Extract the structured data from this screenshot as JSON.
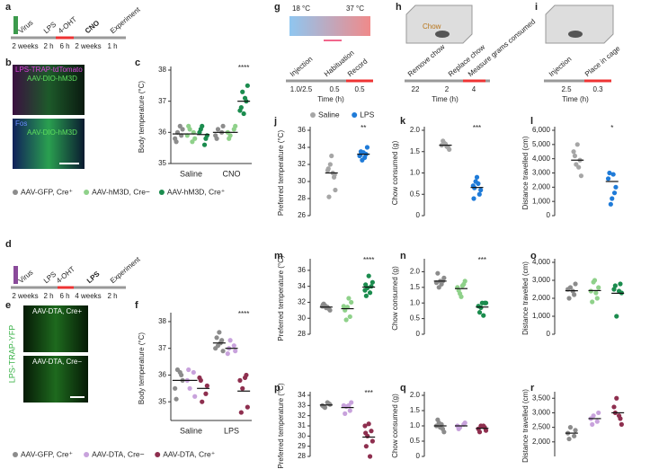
{
  "panel_labels": [
    "a",
    "b",
    "c",
    "d",
    "e",
    "f",
    "g",
    "h",
    "i",
    "j",
    "k",
    "l",
    "m",
    "n",
    "o",
    "p",
    "q",
    "r"
  ],
  "timeline_a": {
    "events": [
      "Virus",
      "LPS",
      "4-OHT",
      "CNO",
      "Experiment"
    ],
    "durations": [
      "2 weeks",
      "2 h",
      "6 h",
      "2 weeks",
      "1 h"
    ]
  },
  "timeline_d": {
    "events": [
      "Virus",
      "LPS",
      "4-OHT",
      "LPS",
      "Experiment"
    ],
    "durations": [
      "2 weeks",
      "2 h",
      "6 h",
      "4 weeks",
      "2 h"
    ]
  },
  "image_b": [
    "LPS-TRAP-tdTomato",
    "AAV-DIO-hM3D",
    "Fos",
    "AAV-DIO-hM3D"
  ],
  "image_e": [
    "AAV-DTA, Cre+",
    "AAV-DTA, Cre−",
    "LPS-TRAP-YFP"
  ],
  "diagram_g": {
    "temps": [
      "18 °C",
      "37 °C"
    ],
    "events": [
      "Injection",
      "Habituation",
      "Record"
    ],
    "durations": [
      "1.0/2.5",
      "0.5",
      "0.5"
    ],
    "axis": "Time (h)"
  },
  "diagram_h": {
    "box": "Chow",
    "events": [
      "Remove chow",
      "Replace chow",
      "Measure grams consumed"
    ],
    "durations": [
      "22",
      "2",
      "4"
    ],
    "axis": "Time (h)"
  },
  "diagram_i": {
    "events": [
      "Injection",
      "Place in cage"
    ],
    "durations": [
      "2.5",
      "0.3"
    ],
    "axis": "Time (h)"
  },
  "chart_data": [
    {
      "type": "strip",
      "ylabel": "Body temperature (°C)",
      "ylim": [
        35,
        38
      ],
      "yticks": [
        35,
        36,
        37,
        38
      ],
      "categories": [
        "Saline",
        "CNO"
      ],
      "annotation": "****",
      "series": [
        {
          "name": "AAV-GFP, Cre⁺",
          "color": "#8c8c8c",
          "values": [
            [
              35.8,
              35.9,
              36.0,
              36.1,
              35.7,
              36.2
            ],
            [
              35.9,
              36.0,
              36.1,
              36.2,
              35.8
            ]
          ],
          "means": [
            35.95,
            36.0
          ]
        },
        {
          "name": "AAV-hM3D, Cre−",
          "color": "#8fd18a",
          "values": [
            [
              35.9,
              36.0,
              36.1,
              35.8,
              36.2,
              35.7
            ],
            [
              36.0,
              36.1,
              35.9,
              36.2,
              35.8
            ]
          ],
          "means": [
            35.95,
            36.0
          ]
        },
        {
          "name": "AAV-hM3D, Cre⁺",
          "color": "#1b8c4e",
          "values": [
            [
              36.0,
              35.8,
              36.2,
              35.9,
              36.1,
              35.6
            ],
            [
              36.7,
              37.0,
              37.3,
              37.5,
              36.8,
              37.1,
              36.6
            ]
          ],
          "means": [
            35.93,
            37.0
          ]
        }
      ]
    },
    {
      "type": "strip",
      "ylabel": "Body temperature (°C)",
      "ylim": [
        34.3,
        38.2
      ],
      "yticks": [
        35,
        36,
        37,
        38
      ],
      "categories": [
        "Saline",
        "LPS"
      ],
      "annotation": "****",
      "series": [
        {
          "name": "AAV-GFP, Cre⁺",
          "color": "#8c8c8c",
          "values": [
            [
              35.5,
              36.0,
              36.2,
              35.8,
              35.1,
              36.1
            ],
            [
              37.0,
              37.3,
              37.1,
              36.9,
              37.4,
              37.2,
              37.6
            ]
          ],
          "means": [
            35.8,
            37.2
          ]
        },
        {
          "name": "AAV-DTA, Cre−",
          "color": "#c8a2dc",
          "values": [
            [
              35.8,
              36.1,
              35.5,
              35.2,
              36.2
            ],
            [
              36.8,
              37.1,
              37.3,
              36.9,
              37.0
            ]
          ],
          "means": [
            35.8,
            37.0
          ]
        },
        {
          "name": "AAV-DTA, Cre⁺",
          "color": "#8e2f4f",
          "values": [
            [
              35.9,
              35.3,
              35.0,
              35.6,
              35.8
            ],
            [
              35.8,
              36.0,
              35.5,
              34.8,
              34.6,
              35.9
            ]
          ],
          "means": [
            35.5,
            35.4
          ]
        }
      ]
    },
    {
      "type": "strip",
      "ylabel": "Preferred temperature (°C)",
      "ylim": [
        26,
        36
      ],
      "yticks": [
        26,
        28,
        30,
        32,
        34,
        36
      ],
      "annotation": "**",
      "series": [
        {
          "name": "Saline",
          "color": "#a6a6a6",
          "values": [
            31.3,
            30.5,
            32,
            29,
            28.2,
            31,
            33,
            31.5,
            30.8
          ],
          "means": 31.0
        },
        {
          "name": "LPS",
          "color": "#1f7bd8",
          "values": [
            33,
            33.2,
            32.5,
            34,
            33.5,
            32.8,
            33.4,
            33.1
          ],
          "means": 33.2
        }
      ]
    },
    {
      "type": "strip",
      "ylabel": "Chow consumed (g)",
      "ylim": [
        0,
        2
      ],
      "yticks": [
        0,
        0.5,
        {
          "value": 1,
          "label": "1.0"
        },
        1.5,
        {
          "value": 2,
          "label": "2.0"
        }
      ],
      "annotation": "***",
      "series": [
        {
          "color": "#a6a6a6",
          "values": [
            1.65,
            1.6,
            1.7,
            1.55,
            1.75,
            1.62,
            1.68
          ],
          "means": 1.65
        },
        {
          "color": "#1f7bd8",
          "values": [
            0.7,
            0.5,
            0.8,
            0.6,
            0.65,
            0.75,
            0.9,
            0.4
          ],
          "means": 0.66
        }
      ]
    },
    {
      "type": "strip",
      "ylabel": "Distance travelled (cm)",
      "ylim": [
        0,
        6000
      ],
      "yticks": [
        0,
        {
          "value": 1000,
          "label": "1,000"
        },
        {
          "value": 2000,
          "label": "2,000"
        },
        {
          "value": 3000,
          "label": "3,000"
        },
        {
          "value": 4000,
          "label": "4,000"
        },
        {
          "value": 5000,
          "label": "5,000"
        },
        {
          "value": 6000,
          "label": "6,000"
        }
      ],
      "annotation": "*",
      "series": [
        {
          "color": "#a6a6a6",
          "values": [
            4500,
            3900,
            3600,
            2800,
            4200,
            3400,
            5000
          ],
          "means": 3900
        },
        {
          "color": "#1f7bd8",
          "values": [
            2600,
            1600,
            800,
            2000,
            3000,
            2900,
            1200
          ],
          "means": 2400
        }
      ]
    },
    {
      "type": "strip",
      "ylabel": "Preferred temperature (°C)",
      "ylim": [
        28,
        37
      ],
      "yticks": [
        28,
        30,
        32,
        34,
        36
      ],
      "annotation": "****",
      "series": [
        {
          "color": "#8c8c8c",
          "values": [
            31.5,
            31.2,
            31.6,
            31.0,
            31.8,
            31.4,
            31.3,
            31.7
          ],
          "means": 31.4
        },
        {
          "color": "#8fd18a",
          "values": [
            31.5,
            30.2,
            29.8,
            32.0,
            31.0,
            32.5,
            31.4
          ],
          "means": 31.2
        },
        {
          "color": "#1b8c4e",
          "values": [
            33.5,
            34,
            33.8,
            34.5,
            32.8,
            33.2,
            35.3,
            34.2
          ],
          "means": 33.9
        }
      ]
    },
    {
      "type": "strip",
      "ylabel": "Chow consumed (g)",
      "ylim": [
        0,
        2.3
      ],
      "yticks": [
        0,
        0.5,
        {
          "value": 1,
          "label": "1.0"
        },
        1.5,
        {
          "value": 2,
          "label": "2.0"
        }
      ],
      "annotation": "***",
      "series": [
        {
          "color": "#8c8c8c",
          "values": [
            1.65,
            1.7,
            1.5,
            1.8,
            1.95,
            1.6,
            1.7
          ],
          "means": 1.7
        },
        {
          "color": "#8fd18a",
          "values": [
            1.5,
            1.6,
            1.3,
            1.7,
            1.4,
            1.55,
            1.2
          ],
          "means": 1.46
        },
        {
          "color": "#1b8c4e",
          "values": [
            0.9,
            1.0,
            0.85,
            1.0,
            0.7,
            0.6,
            1.0
          ],
          "means": 0.87
        }
      ]
    },
    {
      "type": "strip",
      "ylabel": "Distance travelled (cm)",
      "ylim": [
        0,
        4000
      ],
      "yticks": [
        0,
        {
          "value": 1000,
          "label": "1,000"
        },
        {
          "value": 2000,
          "label": "2,000"
        },
        {
          "value": 3000,
          "label": "3,000"
        },
        {
          "value": 4000,
          "label": "4,000"
        }
      ],
      "series": [
        {
          "color": "#8c8c8c",
          "values": [
            2500,
            2200,
            2600,
            2800,
            2000,
            2400
          ],
          "means": 2420
        },
        {
          "color": "#8fd18a",
          "values": [
            2400,
            2000,
            2900,
            2600,
            1800,
            2300,
            3000
          ],
          "means": 2430
        },
        {
          "color": "#1b8c4e",
          "values": [
            2500,
            2800,
            1000,
            2300,
            2700,
            2400
          ],
          "means": 2280
        }
      ]
    },
    {
      "type": "strip",
      "ylabel": "Preferred temperature (°C)",
      "ylim": [
        28,
        34
      ],
      "yticks": [
        28,
        29,
        30,
        31,
        32,
        33,
        34
      ],
      "annotation": "***",
      "series": [
        {
          "color": "#8c8c8c",
          "values": [
            33,
            33.2,
            32.8,
            33.1,
            32.9,
            33.3
          ],
          "means": 33.05
        },
        {
          "color": "#c8a2dc",
          "values": [
            33,
            32.5,
            32.9,
            33.3,
            32.2,
            33
          ],
          "means": 32.8
        },
        {
          "color": "#8e2f4f",
          "values": [
            31,
            30.5,
            30,
            29.5,
            29,
            28,
            31.2,
            30.3
          ],
          "means": 29.9
        }
      ]
    },
    {
      "type": "strip",
      "ylabel": "Chow consumed (g)",
      "ylim": [
        0,
        2
      ],
      "yticks": [
        0,
        0.5,
        {
          "value": 1,
          "label": "1.0"
        },
        1.5,
        {
          "value": 2,
          "label": "2.0"
        }
      ],
      "series": [
        {
          "color": "#8c8c8c",
          "values": [
            1.0,
            0.9,
            1.1,
            0.8,
            1.2,
            1.05,
            0.95
          ],
          "means": 1.0
        },
        {
          "color": "#c8a2dc",
          "values": [
            1.0,
            1.05,
            0.95,
            1.1,
            0.9
          ],
          "means": 1.0
        },
        {
          "color": "#8e2f4f",
          "values": [
            0.9,
            0.95,
            1.0,
            0.85,
            0.8,
            1.0
          ],
          "means": 0.92
        }
      ]
    },
    {
      "type": "strip",
      "ylabel": "Distance travelled (cm)",
      "ylim": [
        1500,
        3600
      ],
      "yticks": [
        {
          "value": 2000,
          "label": "2,000"
        },
        {
          "value": 2500,
          "label": "2,500"
        },
        {
          "value": 3000,
          "label": "3,000"
        },
        {
          "value": 3500,
          "label": "3,500"
        }
      ],
      "series": [
        {
          "color": "#8c8c8c",
          "values": [
            2300,
            2200,
            2500,
            2400,
            2100
          ],
          "means": 2300
        },
        {
          "color": "#c8a2dc",
          "values": [
            2800,
            2700,
            2900,
            3000,
            2600
          ],
          "means": 2800
        },
        {
          "color": "#8e2f4f",
          "values": [
            3200,
            2800,
            3500,
            2600,
            3000,
            2900
          ],
          "means": 3000
        }
      ]
    }
  ]
}
